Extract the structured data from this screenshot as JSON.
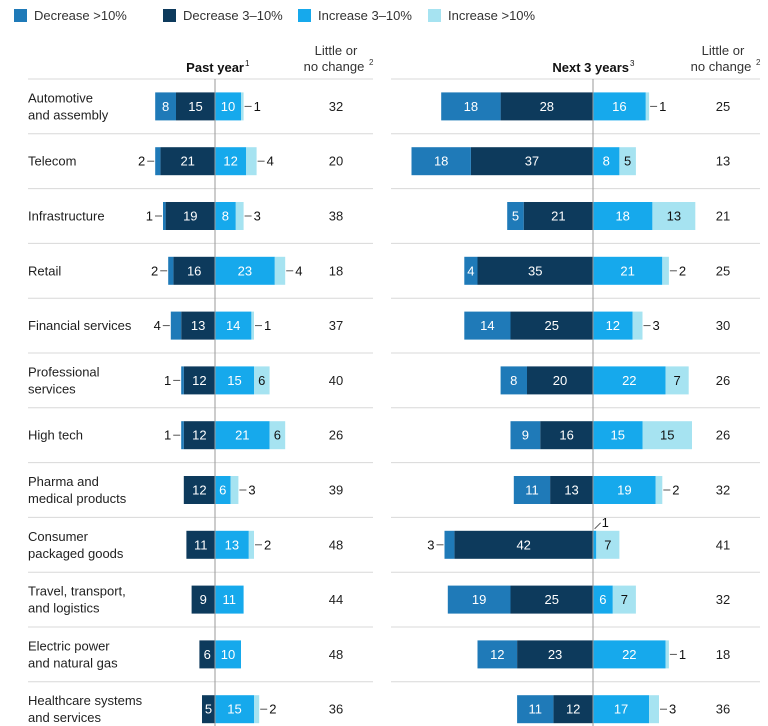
{
  "chart_data": {
    "type": "bar",
    "stacked": true,
    "diverging": true,
    "legend": {
      "placement": "top-left",
      "items": [
        {
          "key": "dec10",
          "label": "Decrease >10%",
          "color": "#1f7ab8"
        },
        {
          "key": "dec3",
          "label": "Decrease 3–10%",
          "color": "#0d3a5c"
        },
        {
          "key": "inc3",
          "label": "Increase 3–10%",
          "color": "#16a9ec"
        },
        {
          "key": "inc10",
          "label": "Increase >10%",
          "color": "#a6e3f1"
        }
      ]
    },
    "categories": [
      "Automotive and assembly",
      "Telecom",
      "Infrastructure",
      "Retail",
      "Financial services",
      "Professional services",
      "High tech",
      "Pharma and medical products",
      "Consumer packaged goods",
      "Travel, transport, and logistics",
      "Electric power and natural gas",
      "Healthcare systems and services"
    ],
    "category_lines": [
      [
        "Automotive",
        "and assembly"
      ],
      [
        "Telecom"
      ],
      [
        "Infrastructure"
      ],
      [
        "Retail"
      ],
      [
        "Financial services"
      ],
      [
        "Professional",
        "services"
      ],
      [
        "High tech"
      ],
      [
        "Pharma and",
        "medical products"
      ],
      [
        "Consumer",
        "packaged goods"
      ],
      [
        "Travel, transport,",
        "and logistics"
      ],
      [
        "Electric power",
        "and natural gas"
      ],
      [
        "Healthcare systems",
        "and services"
      ]
    ],
    "panels": [
      {
        "title": "Past year",
        "title_sup": "1",
        "little_header": [
          "Little or",
          "no change"
        ],
        "little_sup": "2",
        "dec10": [
          8,
          2,
          1,
          2,
          4,
          1,
          1,
          0,
          0,
          0,
          0,
          0
        ],
        "dec3": [
          15,
          21,
          19,
          16,
          13,
          12,
          12,
          12,
          11,
          9,
          6,
          5
        ],
        "inc3": [
          10,
          12,
          8,
          23,
          14,
          15,
          21,
          6,
          13,
          11,
          10,
          15
        ],
        "inc10": [
          1,
          4,
          3,
          4,
          1,
          6,
          6,
          3,
          2,
          0,
          0,
          2
        ],
        "little": [
          32,
          20,
          38,
          18,
          37,
          40,
          26,
          39,
          48,
          44,
          48,
          36
        ]
      },
      {
        "title": "Next 3 years",
        "title_sup": "3",
        "little_header": [
          "Little or",
          "no change"
        ],
        "little_sup": "2",
        "dec10": [
          18,
          18,
          5,
          4,
          14,
          8,
          9,
          11,
          3,
          19,
          12,
          11
        ],
        "dec3": [
          28,
          37,
          21,
          35,
          25,
          20,
          16,
          13,
          42,
          25,
          23,
          12
        ],
        "inc3": [
          16,
          8,
          18,
          21,
          12,
          22,
          15,
          19,
          1,
          6,
          22,
          17
        ],
        "inc10": [
          1,
          5,
          13,
          2,
          3,
          7,
          15,
          2,
          7,
          7,
          1,
          3
        ],
        "little": [
          25,
          13,
          21,
          25,
          30,
          26,
          26,
          32,
          41,
          32,
          18,
          36
        ]
      }
    ]
  }
}
